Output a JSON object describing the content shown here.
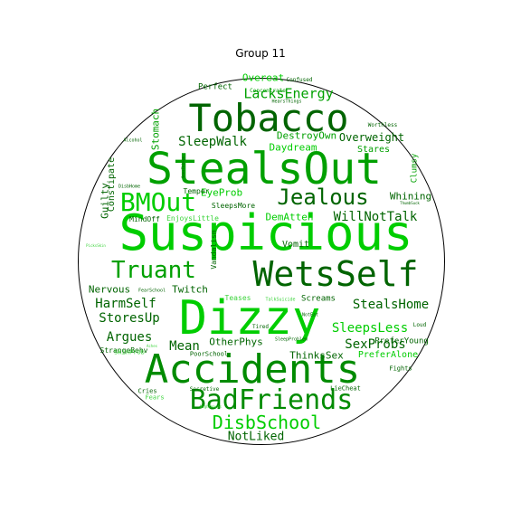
{
  "title": "Group 11",
  "colors": {
    "dark": "#006400",
    "mid": "#008b00",
    "green": "#00a000",
    "bright": "#00cd00",
    "light": "#3cd43c"
  },
  "words": [
    {
      "text": "Suspicious",
      "color": "bright"
    },
    {
      "text": "StealsOut",
      "color": "green"
    },
    {
      "text": "Dizzy",
      "color": "bright"
    },
    {
      "text": "WetsSelf",
      "color": "dark"
    },
    {
      "text": "Accidents",
      "color": "mid"
    },
    {
      "text": "Tobacco",
      "color": "dark"
    },
    {
      "text": "BadFriends",
      "color": "mid"
    },
    {
      "text": "BMOut",
      "color": "bright"
    },
    {
      "text": "Jealous",
      "color": "dark"
    },
    {
      "text": "Truant",
      "color": "green"
    },
    {
      "text": "DisbSchool",
      "color": "bright"
    },
    {
      "text": "LacksEnergy",
      "color": "green"
    },
    {
      "text": "SleepWalk",
      "color": "dark"
    },
    {
      "text": "WillNotTalk",
      "color": "dark"
    },
    {
      "text": "StealsHome",
      "color": "dark"
    },
    {
      "text": "HarmSelf",
      "color": "dark"
    },
    {
      "text": "StoresUp",
      "color": "dark"
    },
    {
      "text": "SleepsLess",
      "color": "bright"
    },
    {
      "text": "Argues",
      "color": "dark"
    },
    {
      "text": "Mean",
      "color": "dark"
    },
    {
      "text": "SexProbs",
      "color": "dark"
    },
    {
      "text": "NotLiked",
      "color": "dark"
    },
    {
      "text": "Overeat",
      "color": "bright"
    },
    {
      "text": "DestroyOwn",
      "color": "green"
    },
    {
      "text": "Overweight",
      "color": "dark"
    },
    {
      "text": "Daydream",
      "color": "bright"
    },
    {
      "text": "Stares",
      "color": "green"
    },
    {
      "text": "Whining",
      "color": "dark"
    },
    {
      "text": "EyeProb",
      "color": "bright"
    },
    {
      "text": "DemAtten",
      "color": "bright"
    },
    {
      "text": "Nervous",
      "color": "dark"
    },
    {
      "text": "Twitch",
      "color": "dark"
    },
    {
      "text": "OtherPhys",
      "color": "dark"
    },
    {
      "text": "ThinksSex",
      "color": "dark"
    },
    {
      "text": "PreferYoung",
      "color": "dark"
    },
    {
      "text": "PreferAlone",
      "color": "bright"
    },
    {
      "text": "Screams",
      "color": "dark"
    },
    {
      "text": "Vomit",
      "color": "dark"
    },
    {
      "text": "Stomach",
      "color": "green"
    },
    {
      "text": "Constipate",
      "color": "dark"
    },
    {
      "text": "Guilty",
      "color": "dark"
    },
    {
      "text": "Perfect",
      "color": "dark"
    },
    {
      "text": "Temper",
      "color": "dark"
    },
    {
      "text": "SleepsMore",
      "color": "dark"
    },
    {
      "text": "MindOff",
      "color": "dark"
    },
    {
      "text": "EnjoysLittle",
      "color": "light"
    },
    {
      "text": "Vandalism",
      "color": "dark"
    },
    {
      "text": "StrangeBehv",
      "color": "dark"
    },
    {
      "text": "SkinProb",
      "color": "light"
    },
    {
      "text": "PoorSchool",
      "color": "dark"
    },
    {
      "text": "Teases",
      "color": "light"
    },
    {
      "text": "Tired",
      "color": "dark"
    },
    {
      "text": "Clumsy",
      "color": "green"
    },
    {
      "text": "Cries",
      "color": "dark"
    },
    {
      "text": "Fears",
      "color": "light"
    },
    {
      "text": "Secretive",
      "color": "dark"
    },
    {
      "text": "LieCheat",
      "color": "dark"
    },
    {
      "text": "Fights",
      "color": "dark"
    },
    {
      "text": "Loud",
      "color": "dark"
    },
    {
      "text": "Concentrate",
      "color": "green"
    },
    {
      "text": "Confused",
      "color": "dark"
    },
    {
      "text": "HearsThings",
      "color": "dark"
    },
    {
      "text": "Worthless",
      "color": "dark"
    },
    {
      "text": "Alcohol",
      "color": "dark"
    },
    {
      "text": "DisbHome",
      "color": "dark"
    },
    {
      "text": "FearSchool",
      "color": "dark"
    },
    {
      "text": "TalkSuicide",
      "color": "light"
    },
    {
      "text": "SleepProblem",
      "color": "dark"
    },
    {
      "text": "ThumbSuck",
      "color": "dark"
    },
    {
      "text": "NotEat",
      "color": "dark"
    },
    {
      "text": "Aches",
      "color": "light"
    },
    {
      "text": "PicksSkin",
      "color": "light"
    },
    {
      "text": "SeesThings",
      "color": "dark"
    },
    {
      "text": "Nightmares",
      "color": "light"
    }
  ]
}
